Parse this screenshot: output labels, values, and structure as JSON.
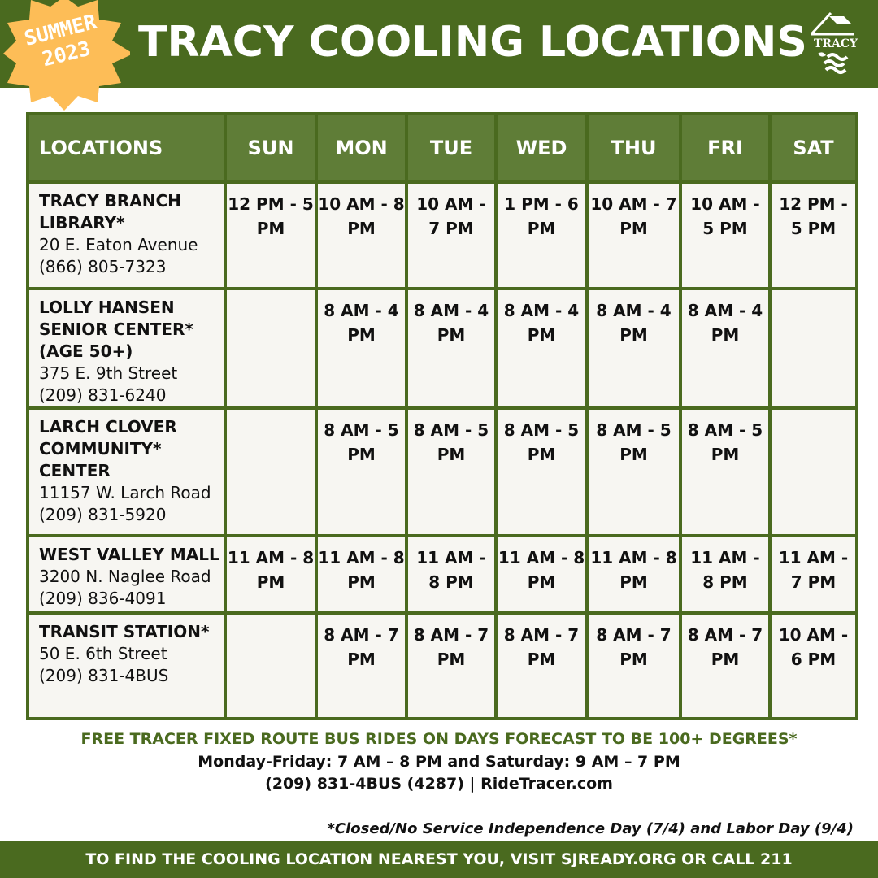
{
  "header": {
    "title": "TRACY COOLING LOCATIONS",
    "badge_line1": "SUMMER",
    "badge_line2": "2023",
    "logo_text": "TRACY"
  },
  "colors": {
    "green": "#4a6a1f",
    "header_green": "#5f7d37",
    "badge": "#fdbd57",
    "cell": "#f7f6f2"
  },
  "table": {
    "columns": [
      "LOCATIONS",
      "SUN",
      "MON",
      "TUE",
      "WED",
      "THU",
      "FRI",
      "SAT"
    ],
    "rows": [
      {
        "name": "TRACY BRANCH LIBRARY*",
        "address": "20 E. Eaton Avenue",
        "phone": "(866) 805-7323",
        "hours": [
          "12 PM - 5 PM",
          "10 AM - 8 PM",
          "10 AM - 7 PM",
          "1 PM - 6 PM",
          "10 AM - 7 PM",
          "10 AM - 5 PM",
          "12 PM - 5 PM"
        ]
      },
      {
        "name": "LOLLY HANSEN SENIOR CENTER* (AGE 50+)",
        "address": "375 E. 9th Street",
        "phone": "(209) 831-6240",
        "hours": [
          "",
          "8 AM - 4 PM",
          "8 AM - 4 PM",
          "8 AM - 4 PM",
          "8 AM - 4 PM",
          "8 AM - 4 PM",
          ""
        ]
      },
      {
        "name": "LARCH CLOVER COMMUNITY* CENTER",
        "address": "11157 W. Larch Road",
        "phone": "(209) 831-5920",
        "hours": [
          "",
          "8 AM - 5 PM",
          "8 AM - 5 PM",
          "8 AM - 5 PM",
          "8 AM - 5 PM",
          "8 AM - 5 PM",
          ""
        ]
      },
      {
        "name": "WEST VALLEY MALL",
        "address": "3200 N. Naglee Road",
        "phone": "(209) 836-4091",
        "hours": [
          "11 AM - 8 PM",
          "11 AM - 8 PM",
          "11 AM - 8 PM",
          "11 AM - 8 PM",
          "11 AM - 8 PM",
          "11 AM - 8 PM",
          "11 AM - 7 PM"
        ]
      },
      {
        "name": "TRANSIT STATION*",
        "address": "50 E. 6th Street",
        "phone": "(209) 831-4BUS",
        "hours": [
          "",
          "8 AM - 7 PM",
          "8 AM - 7 PM",
          "8 AM - 7 PM",
          "8 AM - 7 PM",
          "8 AM - 7 PM",
          "10 AM - 6 PM"
        ]
      }
    ]
  },
  "footer": {
    "bus_title": "FREE TRACER FIXED ROUTE BUS RIDES ON DAYS FORECAST TO BE 100+ DEGREES*",
    "bus_hours": "Monday-Friday: 7 AM – 8 PM and Saturday: 9 AM – 7 PM",
    "bus_contact": "(209) 831-4BUS (4287)  |  RideTracer.com",
    "note": "*Closed/No Service Independence Day (7/4) and Labor Day (9/4)",
    "bar": "TO FIND THE COOLING LOCATION NEAREST YOU, VISIT SJREADY.ORG OR CALL 211"
  }
}
